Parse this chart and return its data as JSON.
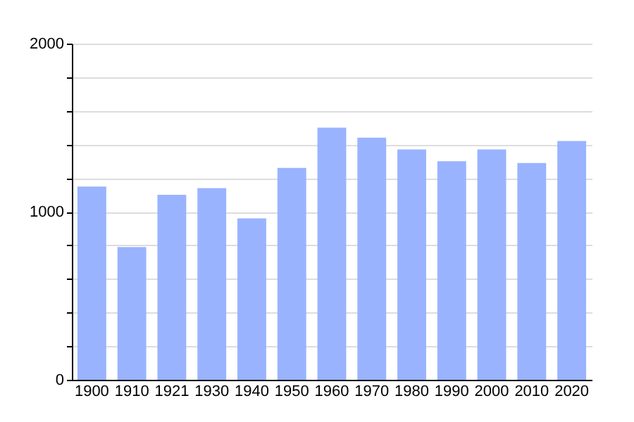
{
  "chart_data": {
    "type": "bar",
    "categories": [
      "1900",
      "1910",
      "1921",
      "1930",
      "1940",
      "1950",
      "1960",
      "1970",
      "1980",
      "1990",
      "2000",
      "2010",
      "2020"
    ],
    "values": [
      1150,
      790,
      1100,
      1140,
      960,
      1260,
      1500,
      1440,
      1370,
      1300,
      1370,
      1290,
      1420
    ],
    "color": "#99b3ff",
    "ylim": [
      0,
      2000
    ],
    "yticks": [
      0,
      {
        "value": 200,
        "label": null
      },
      {
        "value": 400,
        "label": null
      },
      {
        "value": 600,
        "label": null
      },
      {
        "value": 800,
        "label": null
      },
      1000,
      {
        "value": 1200,
        "label": null
      },
      {
        "value": 1400,
        "label": null
      },
      {
        "value": 1600,
        "label": null
      },
      {
        "value": 1800,
        "label": null
      },
      2000
    ],
    "grid": true
  }
}
